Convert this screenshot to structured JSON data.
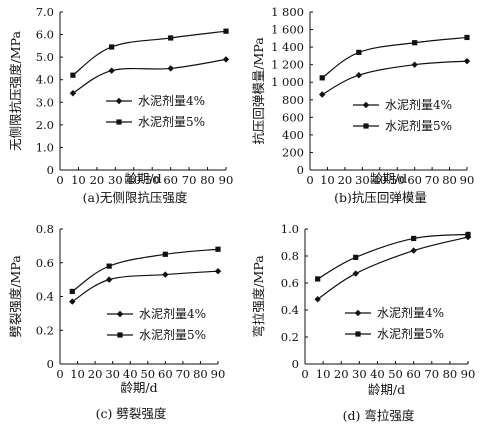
{
  "chart_data": [
    {
      "type": "line",
      "caption": "(a)无侧限抗压强度",
      "xlabel": "龄期/d",
      "ylabel": "无侧限抗压强度/MPa",
      "xlim": [
        0,
        90
      ],
      "ylim": [
        0,
        7.0
      ],
      "xticks": [
        "0",
        "10",
        "20",
        "30",
        "40",
        "50",
        "60",
        "70",
        "80",
        "90"
      ],
      "yticks": [
        "0",
        "1.0",
        "2.0",
        "3.0",
        "4.0",
        "5.0",
        "6.0",
        "7.0"
      ],
      "grid": false,
      "legend_position": "center",
      "series": [
        {
          "name": "水泥剂量4%",
          "marker": "diamond",
          "x": [
            7,
            28,
            60,
            90
          ],
          "y": [
            3.4,
            4.4,
            4.5,
            4.9
          ]
        },
        {
          "name": "水泥剂量5%",
          "marker": "square",
          "x": [
            7,
            28,
            60,
            90
          ],
          "y": [
            4.2,
            5.45,
            5.85,
            6.15
          ]
        }
      ]
    },
    {
      "type": "line",
      "caption": "(b)抗压回弹模量",
      "xlabel": "龄期/d",
      "ylabel": "抗压回弹模量/MPa",
      "xlim": [
        0,
        90
      ],
      "ylim": [
        0,
        1800
      ],
      "xticks": [
        "0",
        "10",
        "20",
        "30",
        "40",
        "50",
        "60",
        "70",
        "80",
        "90"
      ],
      "yticks": [
        "0",
        "200",
        "400",
        "600",
        "800",
        "1 000",
        "1 200",
        "1 400",
        "1 600",
        "1 800"
      ],
      "grid": false,
      "legend_position": "center",
      "series": [
        {
          "name": "水泥剂量4%",
          "marker": "diamond",
          "x": [
            7,
            28,
            60,
            90
          ],
          "y": [
            860,
            1080,
            1200,
            1240
          ]
        },
        {
          "name": "水泥剂量5%",
          "marker": "square",
          "x": [
            7,
            28,
            60,
            90
          ],
          "y": [
            1050,
            1340,
            1450,
            1510
          ]
        }
      ]
    },
    {
      "type": "line",
      "caption": "(c) 劈裂强度",
      "xlabel": "龄期/d",
      "ylabel": "劈裂强度/MPa",
      "xlim": [
        0,
        90
      ],
      "ylim": [
        0,
        0.8
      ],
      "xticks": [
        "0",
        "10",
        "20",
        "30",
        "40",
        "50",
        "60",
        "70",
        "80",
        "90"
      ],
      "yticks": [
        "0",
        "0.2",
        "0.4",
        "0.6",
        "0.8"
      ],
      "grid": false,
      "legend_position": "center",
      "series": [
        {
          "name": "水泥剂量4%",
          "marker": "diamond",
          "x": [
            7,
            28,
            60,
            90
          ],
          "y": [
            0.37,
            0.5,
            0.53,
            0.55
          ]
        },
        {
          "name": "水泥剂量5%",
          "marker": "square",
          "x": [
            7,
            28,
            60,
            90
          ],
          "y": [
            0.43,
            0.58,
            0.65,
            0.68
          ]
        }
      ]
    },
    {
      "type": "line",
      "caption": "(d) 弯拉强度",
      "xlabel": "龄期/d",
      "ylabel": "弯拉强度/MPa",
      "xlim": [
        0,
        90
      ],
      "ylim": [
        0,
        1.0
      ],
      "xticks": [
        "0",
        "10",
        "20",
        "30",
        "40",
        "50",
        "60",
        "70",
        "80",
        "90"
      ],
      "yticks": [
        "0",
        "0.2",
        "0.4",
        "0.6",
        "0.8",
        "1.0"
      ],
      "grid": false,
      "legend_position": "bottom-right",
      "series": [
        {
          "name": "水泥剂量4%",
          "marker": "diamond",
          "x": [
            7,
            28,
            60,
            90
          ],
          "y": [
            0.48,
            0.67,
            0.84,
            0.94
          ]
        },
        {
          "name": "水泥剂量5%",
          "marker": "square",
          "x": [
            7,
            28,
            60,
            90
          ],
          "y": [
            0.63,
            0.79,
            0.93,
            0.96
          ]
        }
      ]
    }
  ]
}
